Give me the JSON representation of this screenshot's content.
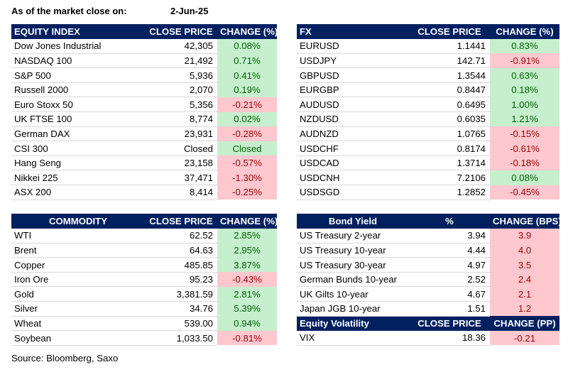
{
  "header": {
    "label": "As of the market close on:",
    "date": "2-Jun-25"
  },
  "equity": {
    "headers": [
      "EQUITY INDEX",
      "CLOSE PRICE",
      "CHANGE (%)"
    ],
    "rows": [
      {
        "name": "Dow Jones Industrial",
        "price": "42,305",
        "change": "0.08%",
        "dir": "pos"
      },
      {
        "name": "NASDAQ 100",
        "price": "21,492",
        "change": "0.71%",
        "dir": "pos"
      },
      {
        "name": "S&P 500",
        "price": "5,936",
        "change": "0.41%",
        "dir": "pos"
      },
      {
        "name": "Russell 2000",
        "price": "2,070",
        "change": "0.19%",
        "dir": "pos"
      },
      {
        "name": "Euro Stoxx 50",
        "price": "5,356",
        "change": "-0.21%",
        "dir": "neg"
      },
      {
        "name": "UK FTSE 100",
        "price": "8,774",
        "change": "0.02%",
        "dir": "pos"
      },
      {
        "name": "German DAX",
        "price": "23,931",
        "change": "-0.28%",
        "dir": "neg"
      },
      {
        "name": "CSI 300",
        "price": "Closed",
        "change": "Closed",
        "dir": "neutral"
      },
      {
        "name": "Hang Seng",
        "price": "23,158",
        "change": "-0.57%",
        "dir": "neg"
      },
      {
        "name": "Nikkei 225",
        "price": "37,471",
        "change": "-1.30%",
        "dir": "neg"
      },
      {
        "name": "ASX 200",
        "price": "8,414",
        "change": "-0.25%",
        "dir": "neg"
      }
    ]
  },
  "fx": {
    "headers": [
      "FX",
      "CLOSE PRICE",
      "CHANGE (%)"
    ],
    "rows": [
      {
        "name": "EURUSD",
        "price": "1.1441",
        "change": "0.83%",
        "dir": "pos"
      },
      {
        "name": "USDJPY",
        "price": "142.71",
        "change": "-0.91%",
        "dir": "neg"
      },
      {
        "name": "GBPUSD",
        "price": "1.3544",
        "change": "0.63%",
        "dir": "pos"
      },
      {
        "name": "EURGBP",
        "price": "0.8447",
        "change": "0.18%",
        "dir": "pos"
      },
      {
        "name": "AUDUSD",
        "price": "0.6495",
        "change": "1.00%",
        "dir": "pos"
      },
      {
        "name": "NZDUSD",
        "price": "0.6035",
        "change": "1.21%",
        "dir": "pos"
      },
      {
        "name": "AUDNZD",
        "price": "1.0765",
        "change": "-0.15%",
        "dir": "neg"
      },
      {
        "name": "USDCHF",
        "price": "0.8174",
        "change": "-0.61%",
        "dir": "neg"
      },
      {
        "name": "USDCAD",
        "price": "1.3714",
        "change": "-0.18%",
        "dir": "neg"
      },
      {
        "name": "USDCNH",
        "price": "7.2106",
        "change": "0.08%",
        "dir": "pos"
      },
      {
        "name": "USDSGD",
        "price": "1.2852",
        "change": "-0.45%",
        "dir": "neg"
      }
    ]
  },
  "commodity": {
    "headers": [
      "COMMODITY",
      "CLOSE PRICE",
      "CHANGE (%)"
    ],
    "rows": [
      {
        "name": "WTI",
        "price": "62.52",
        "change": "2.85%",
        "dir": "pos"
      },
      {
        "name": "Brent",
        "price": "64.63",
        "change": "2.95%",
        "dir": "pos"
      },
      {
        "name": "Copper",
        "price": "485.85",
        "change": "3.87%",
        "dir": "pos"
      },
      {
        "name": "Iron Ore",
        "price": "95.23",
        "change": "-0.43%",
        "dir": "neg"
      },
      {
        "name": "Gold",
        "price": "3,381.59",
        "change": "2.81%",
        "dir": "pos"
      },
      {
        "name": "Silver",
        "price": "34.76",
        "change": "5.39%",
        "dir": "pos"
      },
      {
        "name": "Wheat",
        "price": "539.00",
        "change": "0.94%",
        "dir": "pos"
      },
      {
        "name": "Soybean",
        "price": "1,033.50",
        "change": "-0.81%",
        "dir": "neg"
      }
    ]
  },
  "bond": {
    "headers": [
      "Bond Yield",
      "%",
      "CHANGE (BPS)"
    ],
    "rows": [
      {
        "name": "US Treasury 2-year",
        "price": "3.94",
        "change": "3.9",
        "dir": "neg"
      },
      {
        "name": "US Treasury 10-year",
        "price": "4.44",
        "change": "4.0",
        "dir": "neg"
      },
      {
        "name": "US Treasury 30-year",
        "price": "4.97",
        "change": "3.5",
        "dir": "neg"
      },
      {
        "name": "German Bunds 10-year",
        "price": "2.52",
        "change": "2.4",
        "dir": "neg"
      },
      {
        "name": "UK Gilts 10-year",
        "price": "4.67",
        "change": "2.1",
        "dir": "neg"
      },
      {
        "name": "Japan JGB 10-year",
        "price": "1.51",
        "change": "1.2",
        "dir": "neg"
      }
    ]
  },
  "volatility": {
    "headers": [
      "Equity Volatility",
      "CLOSE PRICE",
      "CHANGE (PP)"
    ],
    "rows": [
      {
        "name": "VIX",
        "price": "18.36",
        "change": "-0.21",
        "dir": "neg"
      }
    ]
  },
  "source": "Source: Bloomberg, Saxo",
  "colors": {
    "header_bg": "#002060",
    "header_text": "#ffffff",
    "positive_bg": "#c6efce",
    "positive_text": "#006100",
    "negative_bg": "#ffc7ce",
    "negative_text": "#9c0006"
  }
}
